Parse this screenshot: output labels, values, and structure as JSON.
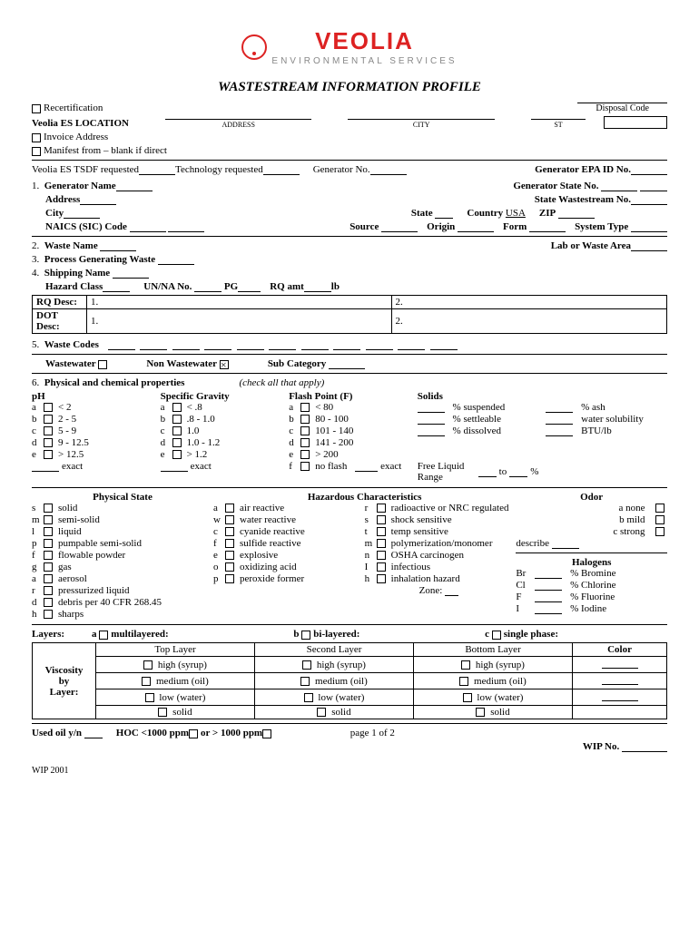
{
  "logo": {
    "name": "VEOLIA",
    "sub": "ENVIRONMENTAL SERVICES"
  },
  "title": "WASTESTREAM INFORMATION PROFILE",
  "top": {
    "recert": "Recertification",
    "disposal": "Disposal Code",
    "location": "Veolia ES LOCATION",
    "invoice": "Invoice Address",
    "manifest": "Manifest from – blank if direct",
    "address": "ADDRESS",
    "city": "CITY",
    "st": "ST"
  },
  "es": {
    "tsdf": "Veolia ES TSDF requested",
    "tech": "Technology requested",
    "genno": "Generator No.",
    "genepa": "Generator EPA ID No."
  },
  "s1": {
    "n": "1.",
    "name": "Generator Name",
    "addr": "Address",
    "city": "City",
    "state": "State",
    "country": "Country",
    "usa": "USA",
    "zip": "ZIP",
    "genstate": "Generator State No.",
    "statewaste": "State Wastestream No.",
    "naics": "NAICS (SIC) Code",
    "source": "Source",
    "origin": "Origin",
    "form": "Form",
    "systype": "System Type"
  },
  "s2": {
    "n": "2.",
    "name": "Waste Name",
    "lab": "Lab or Waste Area"
  },
  "s3": {
    "n": "3.",
    "name": "Process Generating Waste"
  },
  "s4": {
    "n": "4.",
    "name": "Shipping Name",
    "hazard": "Hazard Class",
    "unna": "UN/NA No.",
    "pg": "PG",
    "rq": "RQ amt",
    "lb": "lb"
  },
  "desc": {
    "rq": "RQ Desc:",
    "dot": "DOT Desc:",
    "c1": "1.",
    "c2": "2."
  },
  "s5": {
    "n": "5.",
    "name": "Waste Codes",
    "ww": "Wastewater",
    "nww": "Non Wastewater",
    "sub": "Sub Category"
  },
  "s6": {
    "n": "6.",
    "name": "Physical and chemical properties",
    "hint": "(check all that apply)",
    "ph": "pH",
    "sg": "Specific Gravity",
    "fp": "Flash Point (F)",
    "solids": "Solids",
    "exact": "exact",
    "susp": "% suspended",
    "sett": "% settleable",
    "diss": "% dissolved",
    "ash": "% ash",
    "ws": "water solubility",
    "btu": "BTU/lb",
    "flr": "Free Liquid Range",
    "to": "to",
    "pct": "%",
    "phv": [
      "< 2",
      "2 - 5",
      "5 - 9",
      "9 - 12.5",
      "> 12.5"
    ],
    "sgv": [
      "< .8",
      ".8 - 1.0",
      "1.0",
      "1.0 - 1.2",
      "> 1.2"
    ],
    "fpv": [
      "< 80",
      "80 - 100",
      "101 - 140",
      "141 - 200",
      "> 200",
      "no flash"
    ],
    "l": [
      "a",
      "b",
      "c",
      "d",
      "e",
      "f"
    ]
  },
  "ps": {
    "h": "Physical State",
    "items": [
      [
        "s",
        "solid"
      ],
      [
        "m",
        "semi-solid"
      ],
      [
        "l",
        "liquid"
      ],
      [
        "p",
        "pumpable semi-solid"
      ],
      [
        "f",
        "flowable powder"
      ],
      [
        "g",
        "gas"
      ],
      [
        "a",
        "aerosol"
      ],
      [
        "r",
        "pressurized liquid"
      ],
      [
        "d",
        "debris per 40 CFR 268.45"
      ],
      [
        "h",
        "sharps"
      ]
    ]
  },
  "hc": {
    "h": "Hazardous Characteristics",
    "c1": [
      [
        "a",
        "air reactive"
      ],
      [
        "w",
        "water reactive"
      ],
      [
        "c",
        "cyanide reactive"
      ],
      [
        "f",
        "sulfide reactive"
      ],
      [
        "e",
        "explosive"
      ],
      [
        "o",
        "oxidizing acid"
      ],
      [
        "p",
        "peroxide former"
      ]
    ],
    "c2": [
      [
        "r",
        "radioactive or NRC regulated"
      ],
      [
        "s",
        "shock sensitive"
      ],
      [
        "t",
        "temp sensitive"
      ],
      [
        "m",
        "polymerization/monomer"
      ],
      [
        "n",
        "OSHA carcinogen"
      ],
      [
        "I",
        "infectious"
      ],
      [
        "h",
        "inhalation hazard"
      ]
    ],
    "zone": "Zone:"
  },
  "odor": {
    "h": "Odor",
    "none": "a  none",
    "mild": "b  mild",
    "strong": "c strong",
    "desc": "describe"
  },
  "hal": {
    "h": "Halogens",
    "items": [
      [
        "Br",
        "% Bromine"
      ],
      [
        "Cl",
        "% Chlorine"
      ],
      [
        "F",
        "% Fluorine"
      ],
      [
        "I",
        "% Iodine"
      ]
    ]
  },
  "layers": {
    "h": "Layers:",
    "ml": "multilayered:",
    "bl": "bi-layered:",
    "sp": "single phase:",
    "top": "Top Layer",
    "sec": "Second Layer",
    "bot": "Bottom Layer",
    "color": "Color",
    "visc": "Viscosity",
    "by": "by",
    "layer": "Layer:",
    "opts": [
      "high (syrup)",
      "medium (oil)",
      "low (water)",
      "solid"
    ]
  },
  "foot": {
    "oil": "Used oil y/n",
    "hoc": "HOC <1000 ppm",
    "or": "or > 1000 ppm",
    "page": "page 1 of 2",
    "wip": "WIP No.",
    "wip2": "WIP 2001"
  }
}
